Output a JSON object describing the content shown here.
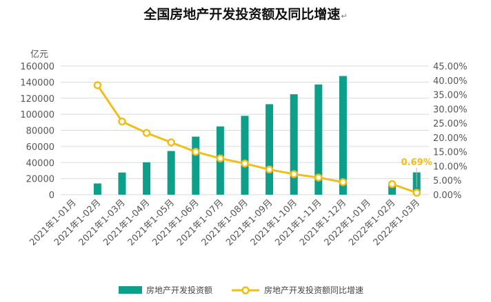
{
  "chart_data": {
    "type": "bar+line",
    "title": "全国房地产开发投资额及同比增速",
    "title_mark": "↵",
    "y1_unit": "亿元",
    "ylim_left": [
      0,
      160000
    ],
    "ylim_right": [
      0,
      45
    ],
    "left_ticks": [
      "0",
      "20000",
      "40000",
      "60000",
      "80000",
      "100000",
      "120000",
      "140000",
      "160000"
    ],
    "right_ticks": [
      "0.00%",
      "5.00%",
      "10.00%",
      "15.00%",
      "20.00%",
      "25.00%",
      "30.00%",
      "35.00%",
      "40.00%",
      "45.00%"
    ],
    "categories": [
      "2021年1-01月",
      "2021年1-02月",
      "2021年1-03月",
      "2021年1-04月",
      "2021年1-05月",
      "2021年1-06月",
      "2021年1-07月",
      "2021年1-08月",
      "2021年1-09月",
      "2021年1-10月",
      "2021年1-11月",
      "2021年1-12月",
      "2022年1-01月",
      "2022年1-02月",
      "2022年1-03月"
    ],
    "series": [
      {
        "name": "房地产开发投资额",
        "type": "bar",
        "axis": "left",
        "color": "#0e9f8a",
        "values": [
          null,
          13986,
          27576,
          40240,
          54318,
          72179,
          84895,
          98059,
          112568,
          124934,
          137086,
          147602,
          null,
          14499,
          27765
        ]
      },
      {
        "name": "房地产开发投资额同比增速",
        "type": "line",
        "axis": "right",
        "color": "#f2bd17",
        "values": [
          null,
          38.3,
          25.6,
          21.6,
          18.3,
          15.0,
          12.7,
          10.9,
          8.8,
          7.2,
          6.0,
          4.4,
          null,
          3.7,
          0.69
        ]
      }
    ],
    "annotation": "0.69%",
    "legend_position": "bottom"
  }
}
